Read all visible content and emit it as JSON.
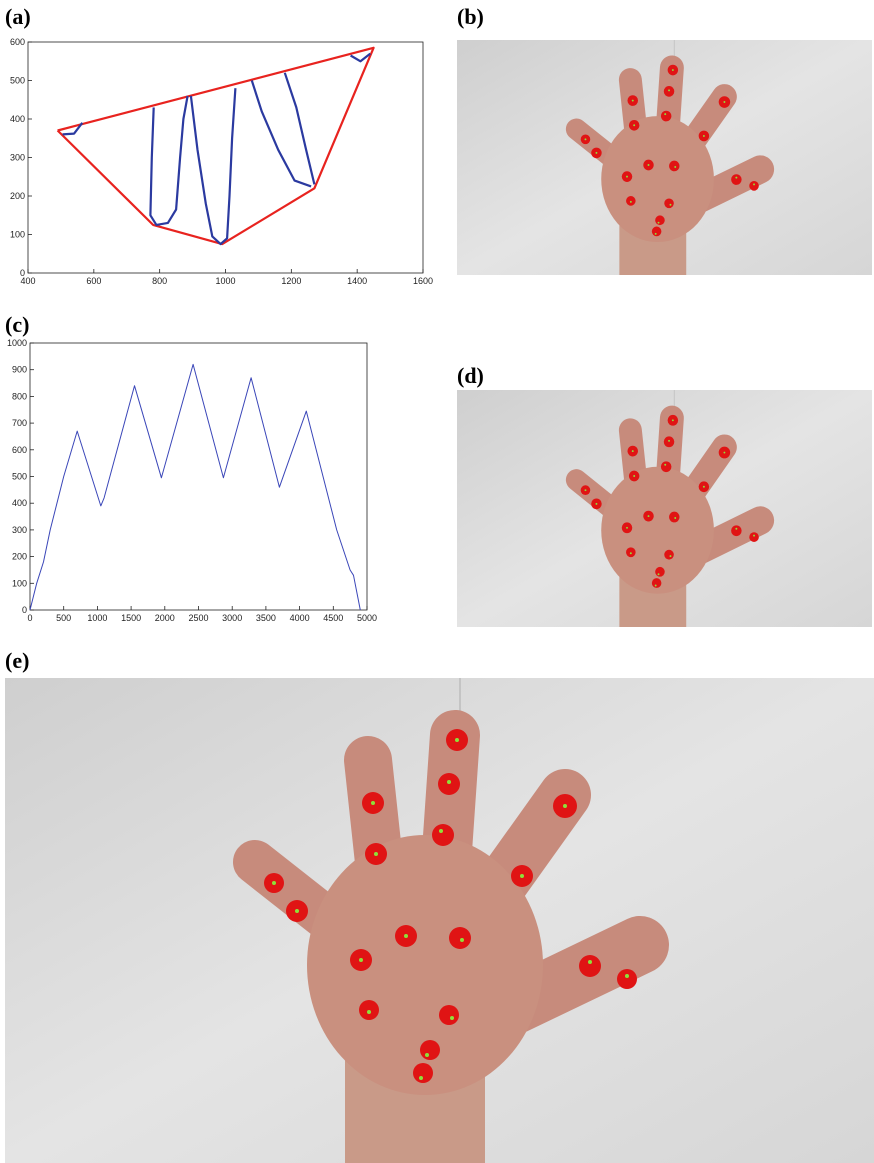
{
  "panel_labels": [
    "(a)",
    "(b)",
    "(c)",
    "(d)",
    "(e)"
  ],
  "chart_data": [
    {
      "type": "line",
      "xlim": [
        400,
        1600
      ],
      "xticks": [
        400,
        600,
        800,
        1000,
        1200,
        1400,
        1600
      ],
      "ylim": [
        0,
        600
      ],
      "yticks": [
        0,
        100,
        200,
        300,
        400,
        500,
        600
      ],
      "series": [
        {
          "color": "#e8231f",
          "x": [
            490,
            1450,
            1270,
            990,
            780,
            490
          ],
          "values": [
            370,
            585,
            220,
            75,
            125,
            370
          ]
        },
        {
          "color": "#2b3aa0",
          "x": [
            505,
            540,
            565,
            null,
            782,
            776,
            772,
            790,
            825,
            850,
            862,
            872,
            885,
            null,
            895,
            915,
            940,
            960,
            985,
            1005,
            1012,
            1020,
            1030,
            null,
            1080,
            1110,
            1160,
            1210,
            1260,
            null,
            1180,
            1215,
            1245,
            1270,
            null,
            1380,
            1410,
            1440
          ],
          "values": [
            360,
            362,
            390,
            null,
            430,
            300,
            150,
            125,
            130,
            165,
            300,
            400,
            460,
            null,
            460,
            320,
            180,
            95,
            75,
            90,
            200,
            350,
            480,
            null,
            500,
            420,
            320,
            240,
            225,
            null,
            520,
            430,
            320,
            230,
            null,
            565,
            550,
            570
          ]
        }
      ]
    },
    {
      "type": "line",
      "xlim": [
        0,
        5000
      ],
      "xticks": [
        0,
        500,
        1000,
        1500,
        2000,
        2500,
        3000,
        3500,
        4000,
        4500,
        5000
      ],
      "ylim": [
        0,
        1000
      ],
      "yticks": [
        0,
        100,
        200,
        300,
        400,
        500,
        600,
        700,
        800,
        900,
        1000
      ],
      "series": [
        {
          "color": "#3a46b8",
          "x": [
            0,
            100,
            200,
            300,
            500,
            700,
            1050,
            1100,
            1550,
            1950,
            2420,
            2870,
            3280,
            3700,
            4100,
            4550,
            4750,
            4800,
            4900
          ],
          "values": [
            0,
            100,
            180,
            300,
            500,
            670,
            390,
            420,
            840,
            495,
            920,
            495,
            870,
            460,
            745,
            300,
            150,
            130,
            0
          ]
        }
      ]
    }
  ]
}
